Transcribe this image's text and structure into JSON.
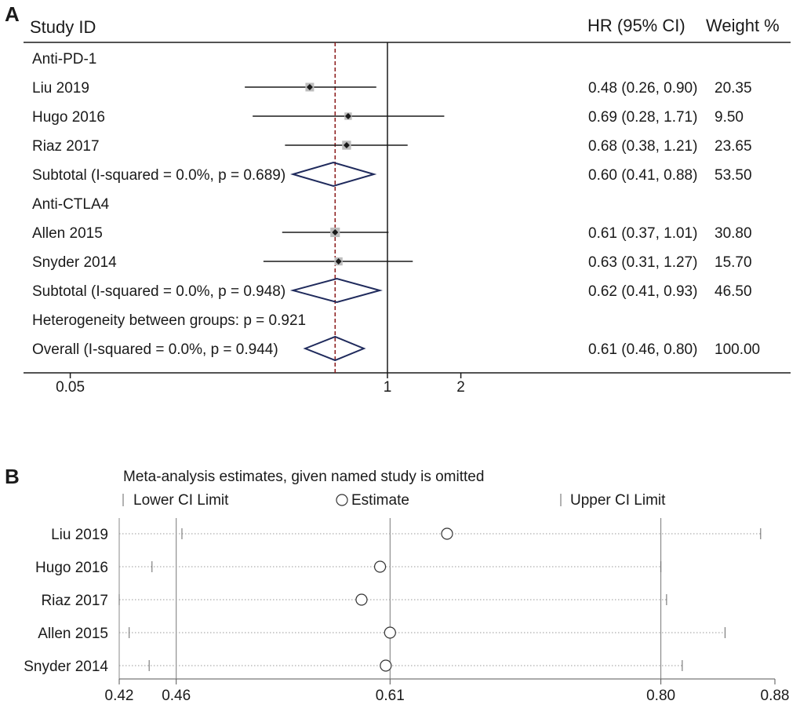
{
  "colors": {
    "ink": "#1a1a1a",
    "diamond": "#1f2a5c",
    "box": "#bdbdbd",
    "ref": "#8b1a1a",
    "dotted": "#9a9a9a"
  },
  "chart_data": [
    {
      "type": "forest",
      "panel_label": "A",
      "header": {
        "study": "Study ID",
        "hr": "HR (95% CI)",
        "weight": "Weight %"
      },
      "x_scale": "log",
      "x_ticks": [
        0.05,
        1,
        2
      ],
      "x_tick_labels": [
        "0.05",
        "1",
        "2"
      ],
      "null_line": 1,
      "overall_line": 0.61,
      "rows": [
        {
          "kind": "group",
          "label": "Anti-PD-1"
        },
        {
          "kind": "study",
          "label": "Liu 2019",
          "hr": 0.48,
          "lo": 0.26,
          "hi": 0.9,
          "text": "0.48 (0.26, 0.90)",
          "weight": "20.35"
        },
        {
          "kind": "study",
          "label": "Hugo 2016",
          "hr": 0.69,
          "lo": 0.28,
          "hi": 1.71,
          "text": "0.69 (0.28, 1.71)",
          "weight": "9.50"
        },
        {
          "kind": "study",
          "label": "Riaz 2017",
          "hr": 0.68,
          "lo": 0.38,
          "hi": 1.21,
          "text": "0.68 (0.38, 1.21)",
          "weight": "23.65"
        },
        {
          "kind": "subtotal",
          "label": "Subtotal  (I-squared = 0.0%, p = 0.689)",
          "hr": 0.6,
          "lo": 0.41,
          "hi": 0.88,
          "text": "0.60 (0.41, 0.88)",
          "weight": "53.50"
        },
        {
          "kind": "group",
          "label": "Anti-CTLA4"
        },
        {
          "kind": "study",
          "label": "Allen 2015",
          "hr": 0.61,
          "lo": 0.37,
          "hi": 1.01,
          "text": "0.61 (0.37, 1.01)",
          "weight": "30.80"
        },
        {
          "kind": "study",
          "label": "Snyder 2014",
          "hr": 0.63,
          "lo": 0.31,
          "hi": 1.27,
          "text": "0.63 (0.31, 1.27)",
          "weight": "15.70"
        },
        {
          "kind": "subtotal",
          "label": "Subtotal  (I-squared = 0.0%, p = 0.948)",
          "hr": 0.62,
          "lo": 0.41,
          "hi": 0.93,
          "text": "0.62 (0.41, 0.93)",
          "weight": "46.50"
        },
        {
          "kind": "note",
          "label": "Heterogeneity between groups: p = 0.921"
        },
        {
          "kind": "subtotal",
          "label": "Overall  (I-squared = 0.0%, p = 0.944)",
          "hr": 0.61,
          "lo": 0.46,
          "hi": 0.8,
          "text": "0.61 (0.46, 0.80)",
          "weight": "100.00"
        }
      ]
    },
    {
      "type": "sensitivity",
      "panel_label": "B",
      "title": "Meta-analysis estimates, given named study is omitted",
      "legend": {
        "lower": "Lower CI Limit",
        "estimate": "Estimate",
        "upper": "Upper CI Limit"
      },
      "x_range": [
        0.42,
        0.88
      ],
      "x_ticks": [
        0.42,
        0.46,
        0.61,
        0.8,
        0.88
      ],
      "x_tick_labels": [
        "0.42",
        "0.46",
        "0.61",
        "0.80",
        "0.88"
      ],
      "ref_lines": [
        0.46,
        0.61,
        0.8
      ],
      "rows": [
        {
          "label": "Liu 2019",
          "lower": 0.464,
          "estimate": 0.65,
          "upper": 0.87
        },
        {
          "label": "Hugo 2016",
          "lower": 0.443,
          "estimate": 0.603,
          "upper": 0.8
        },
        {
          "label": "Riaz 2017",
          "lower": 0.42,
          "estimate": 0.59,
          "upper": 0.804
        },
        {
          "label": "Allen 2015",
          "lower": 0.427,
          "estimate": 0.61,
          "upper": 0.845
        },
        {
          "label": "Snyder 2014",
          "lower": 0.441,
          "estimate": 0.607,
          "upper": 0.815
        }
      ]
    }
  ]
}
